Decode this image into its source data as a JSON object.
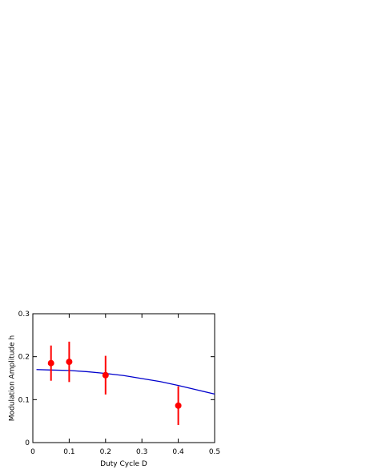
{
  "chart_data": {
    "type": "scatter",
    "xlabel": "Duty Cycle D",
    "ylabel": "Modulation Amplitude h",
    "xlim": [
      0,
      0.5
    ],
    "ylim": [
      0,
      0.3
    ],
    "xticks": [
      0,
      0.1,
      0.2,
      0.3,
      0.4,
      0.5
    ],
    "yticks": [
      0,
      0.1,
      0.2,
      0.3
    ],
    "series": [
      {
        "type": "line",
        "color": "#0000cc",
        "x": [
          0.01,
          0.05,
          0.1,
          0.15,
          0.2,
          0.25,
          0.3,
          0.35,
          0.4,
          0.45,
          0.5
        ],
        "values": [
          0.17,
          0.169,
          0.168,
          0.165,
          0.161,
          0.156,
          0.149,
          0.142,
          0.133,
          0.123,
          0.113
        ]
      },
      {
        "type": "scatter",
        "color": "#ff0000",
        "x": [
          0.05,
          0.1,
          0.2,
          0.4
        ],
        "values": [
          0.185,
          0.188,
          0.157,
          0.086
        ],
        "errors": [
          0.041,
          0.047,
          0.045,
          0.045
        ]
      }
    ]
  }
}
